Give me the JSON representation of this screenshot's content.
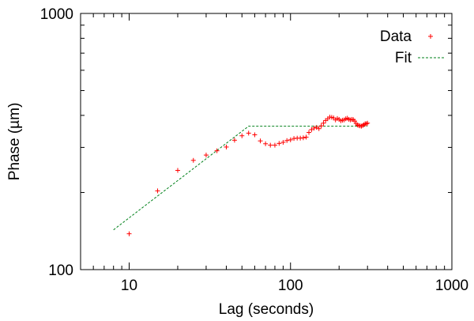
{
  "chart_data": {
    "type": "scatter",
    "title": "",
    "xlabel": "Lag (seconds)",
    "ylabel": "Phase (µm)",
    "x_scale": "log",
    "y_scale": "log",
    "xlim": [
      5,
      1000
    ],
    "ylim": [
      100,
      1000
    ],
    "x_ticks": [
      {
        "value": 10,
        "label": "10"
      },
      {
        "value": 100,
        "label": "100"
      },
      {
        "value": 1000,
        "label": "1000"
      }
    ],
    "y_ticks": [
      {
        "value": 100,
        "label": "100"
      },
      {
        "value": 1000,
        "label": "1000"
      }
    ],
    "grid": false,
    "legend_position": "top-right",
    "series": [
      {
        "name": "Data",
        "type": "scatter",
        "marker": "+",
        "color": "#ff0000",
        "x": [
          10,
          15,
          20,
          25,
          30,
          35,
          40,
          45,
          50,
          55,
          60,
          65,
          70,
          75,
          80,
          85,
          90,
          95,
          100,
          105,
          110,
          115,
          120,
          125,
          130,
          135,
          140,
          145,
          150,
          155,
          160,
          165,
          170,
          175,
          180,
          185,
          190,
          195,
          200,
          205,
          210,
          215,
          220,
          225,
          230,
          235,
          240,
          245,
          250,
          255,
          260,
          265,
          270,
          275,
          280,
          285,
          290,
          295,
          300
        ],
        "y": [
          138,
          203,
          244,
          267,
          280,
          291,
          301,
          320,
          333,
          341,
          336,
          318,
          310,
          306,
          306,
          311,
          314,
          319,
          321,
          325,
          326,
          326,
          327,
          329,
          343,
          352,
          357,
          359,
          355,
          364,
          373,
          382,
          388,
          394,
          393,
          391,
          384,
          389,
          386,
          381,
          383,
          384,
          388,
          390,
          386,
          384,
          386,
          385,
          380,
          372,
          367,
          365,
          364,
          363,
          365,
          368,
          371,
          371,
          373
        ]
      },
      {
        "name": "Fit",
        "type": "line",
        "style": "dashed",
        "color": "#00801a",
        "x": [
          8,
          55,
          300
        ],
        "y": [
          143,
          363,
          363
        ]
      }
    ]
  }
}
